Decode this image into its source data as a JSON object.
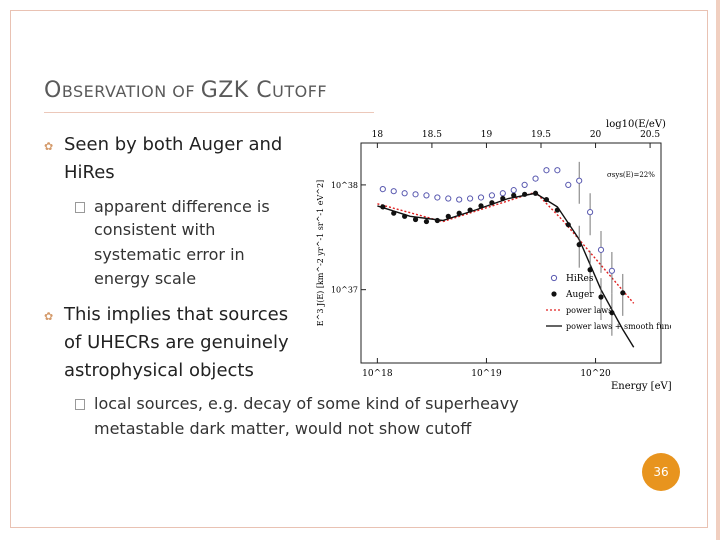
{
  "slide": {
    "title_parts": {
      "o": "O",
      "bservation": "BSERVATION",
      "of": " OF ",
      "gzk": "GZK ",
      "c": "C",
      "utoff": "UTOFF"
    },
    "bullets": {
      "b1_line1": "Seen by both Auger and",
      "b1_line2": "HiRes",
      "b1_sub_line1": "apparent difference is",
      "b1_sub_line2": "consistent with",
      "b1_sub_line3": "systematic error in",
      "b1_sub_line4": "energy scale",
      "b2_line1": "This implies that sources",
      "b2_line2": "of UHECRs are genuinely",
      "b2_line3": "astrophysical objects",
      "b2_sub_line1": "local sources, e.g. decay of some kind of superheavy",
      "b2_sub_line2": "metastable dark matter, would not show cutoff"
    },
    "page_number": "36"
  },
  "chart_data": {
    "type": "scatter",
    "top_axis_label": "log10(E/eV)",
    "top_ticks": [
      "18",
      "18.5",
      "19",
      "19.5",
      "20",
      "20.5"
    ],
    "xlabel": "Energy [eV]",
    "x_ticks": [
      "10^18",
      "10^19",
      "10^20"
    ],
    "ylabel": "E^3 J(E) [km^-2 yr^-1 sr^-1 eV^2]",
    "y_ticks": [
      "10^38",
      "10^37"
    ],
    "annotation": "σsys(E)=22%",
    "legend_position": "center-right",
    "xlim_log10": [
      17.85,
      20.6
    ],
    "ylim_log10": [
      36.3,
      38.4
    ],
    "series": [
      {
        "name": "HiRes",
        "marker": "open-circle",
        "color": "#5a5ab0",
        "points": [
          [
            18.05,
            37.96
          ],
          [
            18.15,
            37.94
          ],
          [
            18.25,
            37.92
          ],
          [
            18.35,
            37.91
          ],
          [
            18.45,
            37.9
          ],
          [
            18.55,
            37.88
          ],
          [
            18.65,
            37.87
          ],
          [
            18.75,
            37.86
          ],
          [
            18.85,
            37.87
          ],
          [
            18.95,
            37.88
          ],
          [
            19.05,
            37.9
          ],
          [
            19.15,
            37.92
          ],
          [
            19.25,
            37.95
          ],
          [
            19.35,
            38.0
          ],
          [
            19.45,
            38.06
          ],
          [
            19.55,
            38.14
          ],
          [
            19.65,
            38.14
          ],
          [
            19.75,
            38.0
          ],
          [
            19.85,
            38.04
          ],
          [
            19.95,
            37.74
          ],
          [
            20.05,
            37.38
          ],
          [
            20.15,
            37.18
          ]
        ]
      },
      {
        "name": "Auger",
        "marker": "filled-circle",
        "color": "#111111",
        "points": [
          [
            18.05,
            37.79
          ],
          [
            18.15,
            37.73
          ],
          [
            18.25,
            37.7
          ],
          [
            18.35,
            37.67
          ],
          [
            18.45,
            37.65
          ],
          [
            18.55,
            37.66
          ],
          [
            18.65,
            37.7
          ],
          [
            18.75,
            37.73
          ],
          [
            18.85,
            37.76
          ],
          [
            18.95,
            37.8
          ],
          [
            19.05,
            37.83
          ],
          [
            19.15,
            37.87
          ],
          [
            19.25,
            37.9
          ],
          [
            19.35,
            37.91
          ],
          [
            19.45,
            37.92
          ],
          [
            19.55,
            37.86
          ],
          [
            19.65,
            37.76
          ],
          [
            19.75,
            37.62
          ],
          [
            19.85,
            37.43
          ],
          [
            19.95,
            37.19
          ],
          [
            20.05,
            36.93
          ],
          [
            20.15,
            36.78
          ],
          [
            20.25,
            36.97
          ]
        ]
      }
    ],
    "lines": [
      {
        "name": "power laws",
        "style": "dotted",
        "color": "#e02020",
        "points": [
          [
            18.0,
            37.82
          ],
          [
            18.6,
            37.65
          ],
          [
            19.45,
            37.93
          ],
          [
            19.7,
            37.66
          ],
          [
            20.35,
            36.87
          ]
        ]
      },
      {
        "name": "power laws + smooth function",
        "style": "solid",
        "color": "#111111",
        "points": [
          [
            18.0,
            37.8
          ],
          [
            18.3,
            37.7
          ],
          [
            18.6,
            37.66
          ],
          [
            18.9,
            37.76
          ],
          [
            19.2,
            37.87
          ],
          [
            19.45,
            37.92
          ],
          [
            19.65,
            37.79
          ],
          [
            19.85,
            37.48
          ],
          [
            20.05,
            37.0
          ],
          [
            20.25,
            36.62
          ],
          [
            20.35,
            36.45
          ]
        ]
      }
    ]
  }
}
